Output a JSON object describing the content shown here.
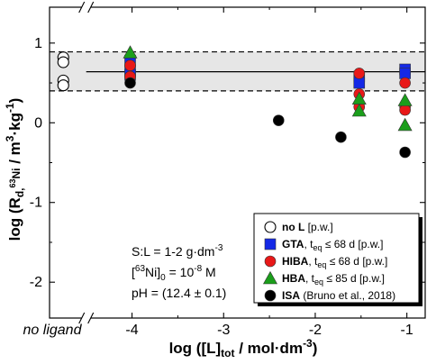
{
  "chart_data": {
    "type": "scatter",
    "xlabel_main": "log ([L]",
    "xlabel_sub": "tot",
    "xlabel_tail": " / mol·dm",
    "xlabel_sup": "-3",
    "xlabel_close": ")",
    "ylabel_main": "log (R",
    "ylabel_sub": "d,",
    "ylabel_sup63": "63",
    "ylabel_ni": "Ni",
    "ylabel_tail": " / m",
    "ylabel_sup3": "3",
    "ylabel_tail2": "·kg",
    "ylabel_supm1": "-1",
    "ylabel_close": ")",
    "xlim": [
      -4.9,
      -0.8
    ],
    "ylim": [
      -2.45,
      1.45
    ],
    "x_ticks": [
      {
        "value": -4,
        "label": "-4"
      },
      {
        "value": -3,
        "label": "-3"
      },
      {
        "value": -2,
        "label": "-2"
      },
      {
        "value": -1,
        "label": "-1"
      }
    ],
    "x_noligand_label": "no ligand",
    "y_ticks": [
      {
        "value": 1,
        "label": "1"
      },
      {
        "value": 0,
        "label": "0"
      },
      {
        "value": -1,
        "label": "-1"
      },
      {
        "value": -2,
        "label": "-2"
      }
    ],
    "reference_line": 0.64,
    "band": [
      0.4,
      0.89
    ],
    "annotations": [
      {
        "main": "S:L = 1-2 g·dm",
        "sup": "-3"
      },
      {
        "pre": "[",
        "sup1": "63",
        "mid": "Ni]",
        "sub": "0",
        "tail": " = 10",
        "sup2": "-8",
        "end": " M"
      },
      {
        "main": "pH = (12.4 ± 0.1)"
      }
    ],
    "series": [
      {
        "name": "no L",
        "note": " [p.w.]",
        "marker": "circle-open",
        "color": "#ffffff",
        "points": [
          [
            -4.75,
            0.82
          ],
          [
            -4.75,
            0.76
          ],
          [
            -4.75,
            0.53
          ],
          [
            -4.75,
            0.47
          ]
        ]
      },
      {
        "name": "GTA",
        "note": ", t",
        "note_sub": "eq",
        "note_tail": " ≤ 68 d [p.w.]",
        "marker": "square",
        "color": "#1428e6",
        "points": [
          [
            -4.02,
            0.78
          ],
          [
            -4.02,
            0.65
          ],
          [
            -4.02,
            0.6
          ],
          [
            -1.52,
            0.58
          ],
          [
            -1.52,
            0.5
          ],
          [
            -1.02,
            0.67
          ],
          [
            -1.02,
            0.62
          ]
        ]
      },
      {
        "name": "HIBA",
        "note": ", t",
        "note_sub": "eq",
        "note_tail": " ≤ 68 d [p.w.]",
        "marker": "circle",
        "color": "#e81818",
        "points": [
          [
            -4.02,
            0.72
          ],
          [
            -4.02,
            0.58
          ],
          [
            -1.52,
            0.62
          ],
          [
            -1.52,
            0.36
          ],
          [
            -1.52,
            0.2
          ],
          [
            -1.02,
            0.5
          ],
          [
            -1.02,
            0.2
          ],
          [
            -1.02,
            0.16
          ]
        ]
      },
      {
        "name": "HBA",
        "note": ", t",
        "note_sub": "eq",
        "note_tail": " ≤ 85 d [p.w.]",
        "marker": "triangle",
        "color": "#1b9e1b",
        "points": [
          [
            -4.02,
            0.88
          ],
          [
            -1.52,
            0.3
          ],
          [
            -1.52,
            0.15
          ],
          [
            -1.02,
            0.28
          ],
          [
            -1.02,
            -0.03
          ]
        ]
      },
      {
        "name": "ISA",
        "note": " (Bruno et al., 2018)",
        "marker": "circle",
        "color": "#000000",
        "points": [
          [
            -4.02,
            0.5
          ],
          [
            -2.4,
            0.03
          ],
          [
            -1.72,
            -0.18
          ],
          [
            -1.02,
            -0.37
          ]
        ]
      }
    ]
  }
}
